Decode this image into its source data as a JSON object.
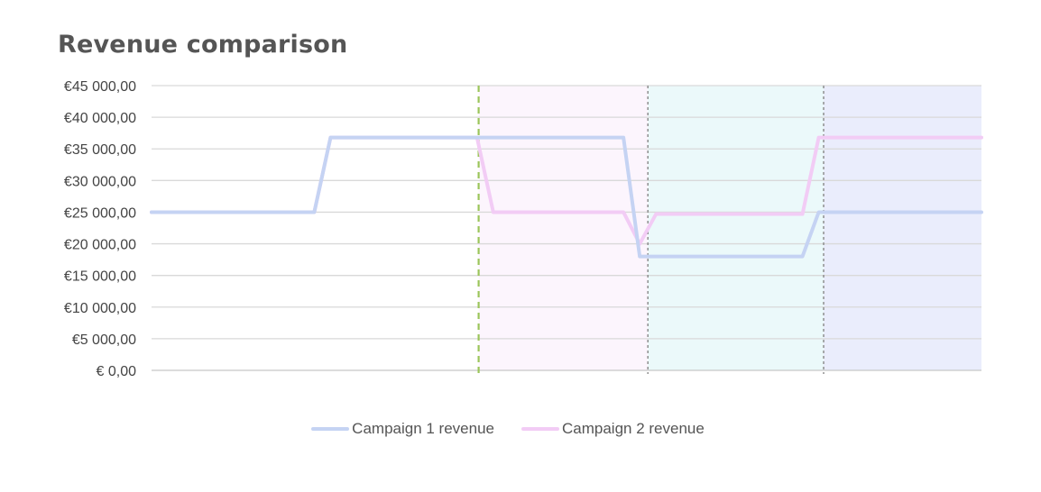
{
  "chart_title": "Revenue comparison",
  "chart_data": {
    "type": "line",
    "title": "Revenue comparison",
    "xlabel": "",
    "ylabel": "",
    "ylim": [
      0,
      45000
    ],
    "yticks": [
      0,
      5000,
      10000,
      15000,
      20000,
      25000,
      30000,
      35000,
      40000,
      45000
    ],
    "ytick_labels": [
      "€ 0,00",
      "€5 000,00",
      "€10 000,00",
      "€15 000,00",
      "€20 000,00",
      "€25 000,00",
      "€30 000,00",
      "€35 000,00",
      "€40 000,00",
      "€45 000,00"
    ],
    "grid": true,
    "legend_position": "bottom",
    "x": [
      0,
      1,
      2,
      3,
      4,
      5,
      6,
      7,
      8,
      9,
      10,
      11,
      12,
      13,
      14,
      15,
      16,
      17,
      18,
      19,
      20,
      21,
      22,
      23,
      24,
      25,
      26,
      27,
      28,
      29,
      30,
      31,
      32,
      33,
      34,
      35,
      36,
      37,
      38,
      39,
      40,
      41,
      42,
      43,
      44,
      45,
      46,
      47,
      48,
      49,
      50,
      51
    ],
    "series": [
      {
        "name": "Campaign 1 revenue",
        "color": "#c5d3f3",
        "values": [
          25000,
          25000,
          25000,
          25000,
          25000,
          25000,
          25000,
          25000,
          25000,
          25000,
          25000,
          36800,
          36800,
          36800,
          36800,
          36800,
          36800,
          36800,
          36800,
          36800,
          36800,
          36800,
          36800,
          36800,
          36800,
          36800,
          36800,
          36800,
          36800,
          36800,
          18000,
          18000,
          18000,
          18000,
          18000,
          18000,
          18000,
          18000,
          18000,
          18000,
          18000,
          25000,
          25000,
          25000,
          25000,
          25000,
          25000,
          25000,
          25000,
          25000,
          25000,
          25000
        ]
      },
      {
        "name": "Campaign 2 revenue",
        "color": "#f2ccf5",
        "values": [
          25000,
          25000,
          25000,
          25000,
          25000,
          25000,
          25000,
          25000,
          25000,
          25000,
          25000,
          36800,
          36800,
          36800,
          36800,
          36800,
          36800,
          36800,
          36800,
          36800,
          36800,
          25000,
          25000,
          25000,
          25000,
          25000,
          25000,
          25000,
          25000,
          25000,
          20000,
          24700,
          24700,
          24700,
          24700,
          24700,
          24700,
          24700,
          24700,
          24700,
          24700,
          36800,
          36800,
          36800,
          36800,
          36800,
          36800,
          36800,
          36800,
          36800,
          36800,
          36800
        ]
      }
    ],
    "shaded_regions": [
      {
        "x_start": 20.1,
        "x_end": 30.5,
        "color": "#fcf5fd"
      },
      {
        "x_start": 30.5,
        "x_end": 41.3,
        "color": "#ebf9fa"
      },
      {
        "x_start": 41.3,
        "x_end": 51,
        "color": "#eaedfc"
      }
    ],
    "vertical_markers": [
      {
        "x": 20.1,
        "color": "#9bc55a",
        "style": "dashed"
      },
      {
        "x": 30.5,
        "color": "#888888",
        "style": "dotted"
      },
      {
        "x": 41.3,
        "color": "#888888",
        "style": "dotted"
      }
    ]
  }
}
